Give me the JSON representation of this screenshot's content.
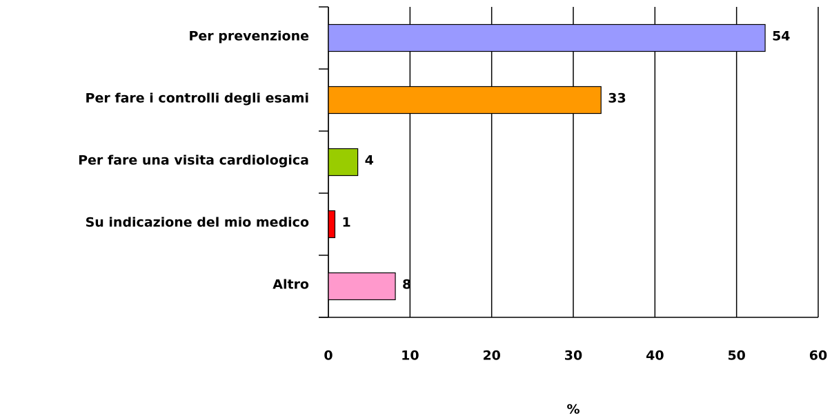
{
  "chart_data": {
    "type": "barh",
    "categories": [
      "Per prevenzione",
      "Per fare i controlli degli esami",
      "Per fare una visita cardiologica",
      "Su indicazione del mio medico",
      "Altro"
    ],
    "values": [
      53.5,
      33.4,
      3.6,
      0.8,
      8.2
    ],
    "value_labels": [
      "54",
      "33",
      "4",
      "1",
      "8"
    ],
    "colors": [
      "#9999ff",
      "#ff9900",
      "#99cc00",
      "#ff0000",
      "#ff99cc"
    ],
    "xlabel": "%",
    "xlim": [
      0,
      60
    ],
    "xticks": [
      0,
      10,
      20,
      30,
      40,
      50,
      60
    ],
    "grid": true
  }
}
